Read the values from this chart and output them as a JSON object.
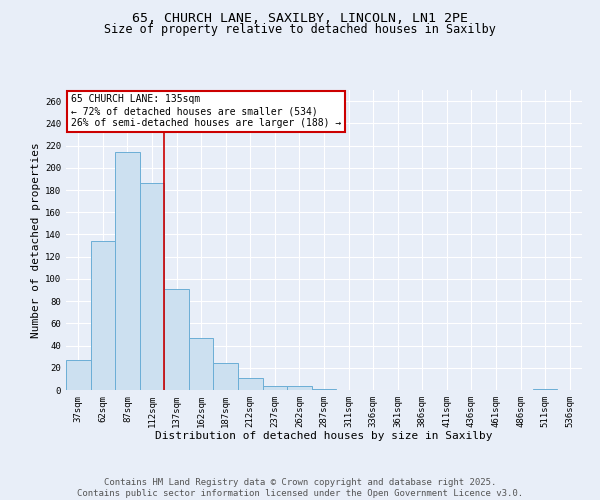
{
  "title_line1": "65, CHURCH LANE, SAXILBY, LINCOLN, LN1 2PE",
  "title_line2": "Size of property relative to detached houses in Saxilby",
  "xlabel": "Distribution of detached houses by size in Saxilby",
  "ylabel": "Number of detached properties",
  "categories": [
    "37sqm",
    "62sqm",
    "87sqm",
    "112sqm",
    "137sqm",
    "162sqm",
    "187sqm",
    "212sqm",
    "237sqm",
    "262sqm",
    "287sqm",
    "311sqm",
    "336sqm",
    "361sqm",
    "386sqm",
    "411sqm",
    "436sqm",
    "461sqm",
    "486sqm",
    "511sqm",
    "536sqm"
  ],
  "values": [
    27,
    134,
    214,
    186,
    91,
    47,
    24,
    11,
    4,
    4,
    1,
    0,
    0,
    0,
    0,
    0,
    0,
    0,
    0,
    1,
    0
  ],
  "bar_color": "#cce0f0",
  "bar_edge_color": "#6baed6",
  "red_line_index": 4,
  "red_line_color": "#cc0000",
  "annotation_text": "65 CHURCH LANE: 135sqm\n← 72% of detached houses are smaller (534)\n26% of semi-detached houses are larger (188) →",
  "annotation_box_color": "#ffffff",
  "annotation_box_edge": "#cc0000",
  "ylim": [
    0,
    270
  ],
  "yticks": [
    0,
    20,
    40,
    60,
    80,
    100,
    120,
    140,
    160,
    180,
    200,
    220,
    240,
    260
  ],
  "background_color": "#e8eef8",
  "grid_color": "#ffffff",
  "footer_line1": "Contains HM Land Registry data © Crown copyright and database right 2025.",
  "footer_line2": "Contains public sector information licensed under the Open Government Licence v3.0.",
  "title_fontsize": 9.5,
  "subtitle_fontsize": 8.5,
  "axis_label_fontsize": 8,
  "tick_fontsize": 6.5,
  "annotation_fontsize": 7,
  "footer_fontsize": 6.5
}
